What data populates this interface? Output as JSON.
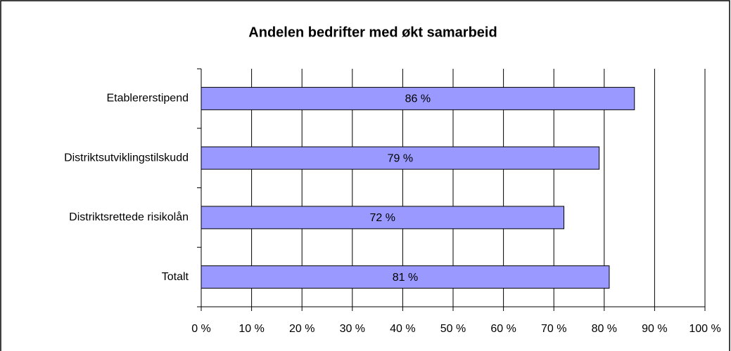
{
  "chart_data": {
    "type": "bar",
    "orientation": "horizontal",
    "title": "Andelen bedrifter med økt samarbeid",
    "categories": [
      "Etablererstipend",
      "Distriktsutviklingstilskudd",
      "Distriktsrettede risikolån",
      "Totalt"
    ],
    "values": [
      86,
      79,
      72,
      81
    ],
    "value_labels": [
      "86 %",
      "79 %",
      "72 %",
      "81 %"
    ],
    "color": "#9999ff",
    "xlim": [
      0,
      100
    ],
    "xticks": [
      {
        "value": 0,
        "label": "0 %"
      },
      {
        "value": 10,
        "label": "10 %"
      },
      {
        "value": 20,
        "label": "20 %"
      },
      {
        "value": 30,
        "label": "30 %"
      },
      {
        "value": 40,
        "label": "40 %"
      },
      {
        "value": 50,
        "label": "50 %"
      },
      {
        "value": 60,
        "label": "60 %"
      },
      {
        "value": 70,
        "label": "70 %"
      },
      {
        "value": 80,
        "label": "80 %"
      },
      {
        "value": 90,
        "label": "90 %"
      },
      {
        "value": 100,
        "label": "100 %"
      }
    ],
    "grid": true
  }
}
